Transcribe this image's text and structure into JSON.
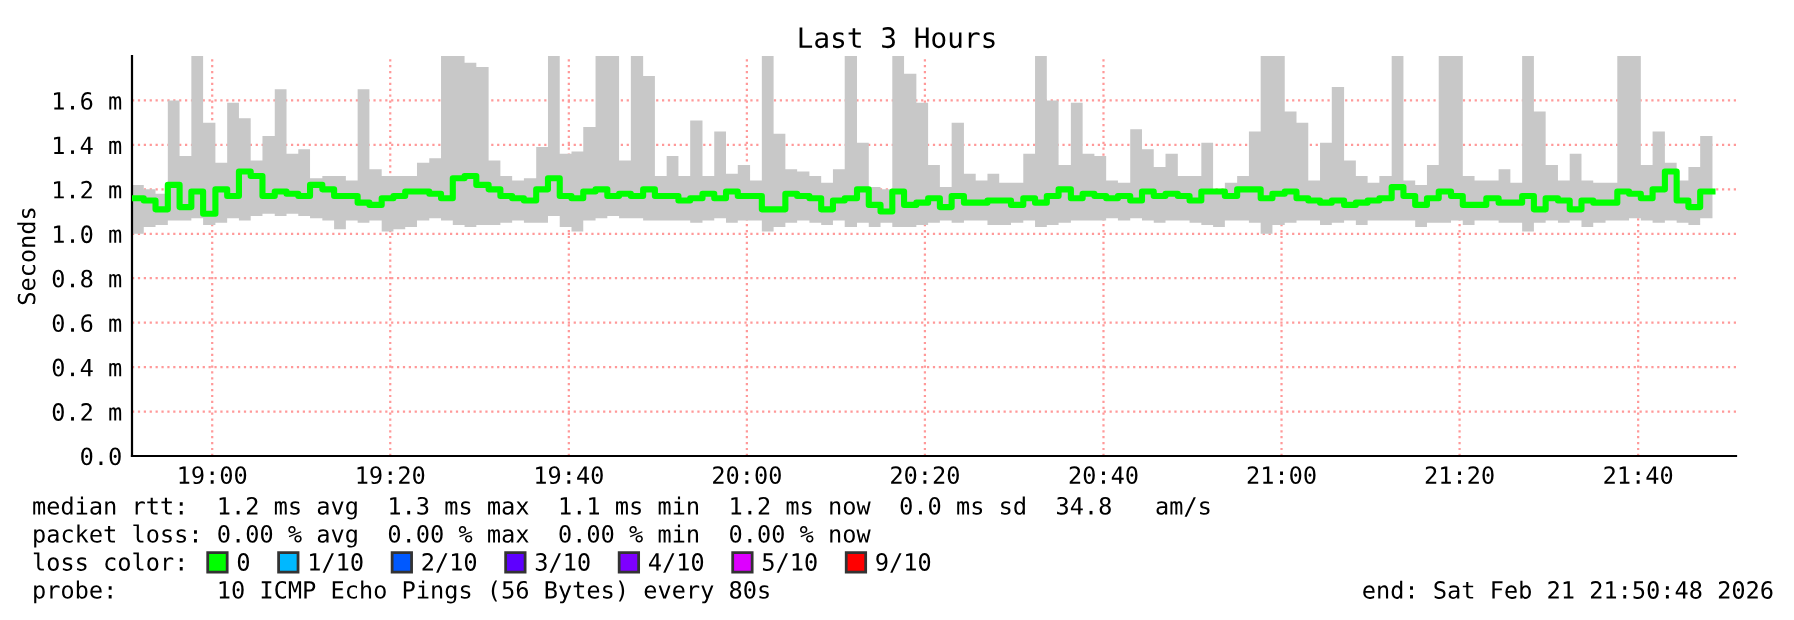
{
  "chart_data": {
    "type": "step",
    "title": "Last 3 Hours",
    "ylabel": "Seconds",
    "xlim": [
      18.85,
      21.85
    ],
    "ylim": [
      0,
      1.8
    ],
    "xticks": [
      {
        "value": 19,
        "label": "19:00"
      },
      {
        "value": 19.333,
        "label": "19:20"
      },
      {
        "value": 19.667,
        "label": "19:40"
      },
      {
        "value": 20,
        "label": "20:00"
      },
      {
        "value": 20.333,
        "label": "20:20"
      },
      {
        "value": 20.667,
        "label": "20:40"
      },
      {
        "value": 21,
        "label": "21:00"
      },
      {
        "value": 21.333,
        "label": "21:20"
      },
      {
        "value": 21.667,
        "label": "21:40"
      }
    ],
    "yticks": [
      {
        "value": 0,
        "label": "0.0"
      },
      {
        "value": 0.2,
        "label": "0.2 m"
      },
      {
        "value": 0.4,
        "label": "0.4 m"
      },
      {
        "value": 0.6,
        "label": "0.6 m"
      },
      {
        "value": 0.8,
        "label": "0.8 m"
      },
      {
        "value": 1.0,
        "label": "1.0 m"
      },
      {
        "value": 1.2,
        "label": "1.2 m"
      },
      {
        "value": 1.4,
        "label": "1.4 m"
      },
      {
        "value": 1.6,
        "label": "1.6 m"
      }
    ],
    "grid": true,
    "legend": "bottom",
    "legend_title": "loss color:",
    "x": [
      18.85,
      18.872,
      18.894,
      18.917,
      18.939,
      18.961,
      18.983,
      19.006,
      19.028,
      19.05,
      19.072,
      19.094,
      19.117,
      19.139,
      19.161,
      19.183,
      19.206,
      19.228,
      19.25,
      19.272,
      19.294,
      19.317,
      19.339,
      19.361,
      19.383,
      19.406,
      19.428,
      19.45,
      19.472,
      19.494,
      19.517,
      19.539,
      19.561,
      19.583,
      19.606,
      19.628,
      19.65,
      19.672,
      19.694,
      19.717,
      19.739,
      19.761,
      19.783,
      19.806,
      19.828,
      19.85,
      19.872,
      19.894,
      19.917,
      19.939,
      19.961,
      19.983,
      20.006,
      20.028,
      20.05,
      20.072,
      20.094,
      20.117,
      20.139,
      20.161,
      20.183,
      20.206,
      20.228,
      20.25,
      20.272,
      20.294,
      20.317,
      20.339,
      20.361,
      20.383,
      20.406,
      20.428,
      20.45,
      20.472,
      20.494,
      20.517,
      20.539,
      20.561,
      20.583,
      20.606,
      20.628,
      20.65,
      20.672,
      20.694,
      20.717,
      20.739,
      20.761,
      20.783,
      20.806,
      20.828,
      20.85,
      20.872,
      20.894,
      20.917,
      20.939,
      20.961,
      20.983,
      21.006,
      21.028,
      21.05,
      21.072,
      21.094,
      21.117,
      21.139,
      21.161,
      21.183,
      21.206,
      21.228,
      21.25,
      21.272,
      21.294,
      21.317,
      21.339,
      21.361,
      21.383,
      21.406,
      21.428,
      21.45,
      21.472,
      21.494,
      21.517,
      21.539,
      21.561,
      21.583,
      21.606,
      21.628,
      21.65,
      21.672,
      21.694,
      21.717,
      21.739,
      21.761,
      21.783,
      21.806
    ],
    "series": [
      {
        "name": "0",
        "color": "#00ff00",
        "values": [
          1.16,
          1.15,
          1.11,
          1.22,
          1.12,
          1.19,
          1.09,
          1.2,
          1.17,
          1.28,
          1.26,
          1.17,
          1.19,
          1.18,
          1.17,
          1.22,
          1.2,
          1.17,
          1.17,
          1.14,
          1.13,
          1.16,
          1.17,
          1.19,
          1.19,
          1.18,
          1.16,
          1.25,
          1.26,
          1.22,
          1.2,
          1.17,
          1.16,
          1.15,
          1.2,
          1.25,
          1.17,
          1.16,
          1.19,
          1.2,
          1.17,
          1.18,
          1.17,
          1.2,
          1.17,
          1.17,
          1.15,
          1.16,
          1.18,
          1.16,
          1.19,
          1.17,
          1.17,
          1.11,
          1.11,
          1.18,
          1.17,
          1.16,
          1.11,
          1.15,
          1.16,
          1.2,
          1.13,
          1.1,
          1.19,
          1.13,
          1.14,
          1.16,
          1.12,
          1.17,
          1.14,
          1.14,
          1.15,
          1.15,
          1.13,
          1.16,
          1.14,
          1.17,
          1.2,
          1.16,
          1.18,
          1.17,
          1.16,
          1.17,
          1.15,
          1.19,
          1.17,
          1.18,
          1.17,
          1.15,
          1.19,
          1.19,
          1.17,
          1.2,
          1.2,
          1.16,
          1.18,
          1.19,
          1.16,
          1.15,
          1.14,
          1.15,
          1.13,
          1.14,
          1.15,
          1.16,
          1.21,
          1.17,
          1.13,
          1.16,
          1.19,
          1.17,
          1.13,
          1.13,
          1.16,
          1.14,
          1.14,
          1.17,
          1.11,
          1.16,
          1.15,
          1.11,
          1.15,
          1.14,
          1.14,
          1.19,
          1.18,
          1.16,
          1.2,
          1.28,
          1.15,
          1.12,
          1.19,
          1.19
        ],
        "lower": [
          1.0,
          1.03,
          1.04,
          1.06,
          1.06,
          1.07,
          1.04,
          1.05,
          1.07,
          1.06,
          1.08,
          1.09,
          1.08,
          1.09,
          1.08,
          1.07,
          1.06,
          1.02,
          1.06,
          1.05,
          1.06,
          1.01,
          1.02,
          1.03,
          1.06,
          1.07,
          1.06,
          1.04,
          1.03,
          1.04,
          1.04,
          1.05,
          1.06,
          1.05,
          1.05,
          1.08,
          1.03,
          1.01,
          1.06,
          1.07,
          1.08,
          1.07,
          1.07,
          1.06,
          1.06,
          1.06,
          1.06,
          1.05,
          1.06,
          1.07,
          1.05,
          1.06,
          1.06,
          1.01,
          1.03,
          1.05,
          1.06,
          1.05,
          1.04,
          1.06,
          1.03,
          1.05,
          1.03,
          1.05,
          1.03,
          1.03,
          1.04,
          1.05,
          1.06,
          1.05,
          1.06,
          1.06,
          1.04,
          1.04,
          1.05,
          1.06,
          1.03,
          1.04,
          1.05,
          1.06,
          1.06,
          1.06,
          1.07,
          1.06,
          1.07,
          1.06,
          1.05,
          1.06,
          1.06,
          1.05,
          1.04,
          1.03,
          1.06,
          1.06,
          1.05,
          1.0,
          1.04,
          1.05,
          1.06,
          1.06,
          1.04,
          1.05,
          1.06,
          1.04,
          1.06,
          1.06,
          1.06,
          1.06,
          1.03,
          1.05,
          1.05,
          1.06,
          1.04,
          1.06,
          1.06,
          1.05,
          1.05,
          1.01,
          1.05,
          1.06,
          1.05,
          1.06,
          1.03,
          1.05,
          1.06,
          1.06,
          1.07,
          1.06,
          1.05,
          1.06,
          1.05,
          1.04,
          1.07,
          1.07
        ],
        "upper": [
          1.22,
          1.2,
          1.18,
          1.6,
          1.35,
          1.8,
          1.5,
          1.32,
          1.59,
          1.52,
          1.33,
          1.44,
          1.65,
          1.36,
          1.38,
          1.25,
          1.26,
          1.26,
          1.24,
          1.65,
          1.29,
          1.26,
          1.26,
          1.26,
          1.32,
          1.34,
          1.8,
          1.8,
          1.77,
          1.75,
          1.33,
          1.26,
          1.24,
          1.25,
          1.39,
          1.8,
          1.36,
          1.37,
          1.48,
          1.8,
          1.8,
          1.33,
          1.8,
          1.71,
          1.26,
          1.35,
          1.26,
          1.51,
          1.26,
          1.46,
          1.27,
          1.31,
          1.24,
          1.8,
          1.45,
          1.29,
          1.28,
          1.26,
          1.23,
          1.29,
          1.8,
          1.41,
          1.21,
          1.2,
          1.8,
          1.72,
          1.59,
          1.31,
          1.21,
          1.5,
          1.27,
          1.24,
          1.27,
          1.23,
          1.23,
          1.36,
          1.8,
          1.6,
          1.31,
          1.59,
          1.36,
          1.35,
          1.24,
          1.23,
          1.47,
          1.38,
          1.3,
          1.36,
          1.26,
          1.26,
          1.41,
          1.2,
          1.23,
          1.26,
          1.46,
          1.8,
          1.8,
          1.55,
          1.5,
          1.24,
          1.41,
          1.66,
          1.33,
          1.26,
          1.23,
          1.26,
          1.8,
          1.24,
          1.22,
          1.31,
          1.8,
          1.8,
          1.26,
          1.24,
          1.24,
          1.29,
          1.23,
          1.8,
          1.55,
          1.31,
          1.24,
          1.36,
          1.24,
          1.23,
          1.23,
          1.8,
          1.8,
          1.31,
          1.46,
          1.32,
          1.24,
          1.3,
          1.44,
          1.44
        ]
      },
      {
        "name": "1/10",
        "color": "#00b8ff",
        "values": [
          null,
          null,
          null,
          null,
          null,
          null,
          null,
          null,
          null,
          null,
          null,
          null,
          null,
          null,
          null,
          null,
          null,
          null,
          null,
          null,
          null,
          null,
          null,
          null,
          null,
          null,
          null,
          null,
          null,
          null,
          null,
          null,
          null,
          null,
          null,
          null,
          null,
          null,
          null,
          null,
          null,
          null,
          null,
          null,
          null,
          null,
          null,
          null,
          null,
          null,
          null,
          null,
          null,
          null,
          null,
          null,
          null,
          null,
          null,
          null,
          null,
          null,
          null,
          null,
          null,
          null,
          null,
          null,
          null,
          null,
          null,
          null,
          null,
          null,
          null,
          null,
          null,
          null,
          null,
          null,
          null,
          null,
          null,
          null,
          null,
          null,
          null,
          null,
          null,
          null,
          null,
          null,
          null,
          null,
          null,
          null,
          null,
          null,
          null,
          null,
          null,
          null,
          null,
          null,
          null,
          null,
          null,
          null,
          null,
          null,
          null,
          null,
          null,
          null,
          null,
          null,
          null,
          null,
          null,
          null,
          null,
          null,
          null,
          null,
          null,
          null,
          null,
          null,
          null,
          null,
          null,
          null,
          null,
          null
        ]
      },
      {
        "name": "2/10",
        "color": "#0059ff",
        "values": [
          null,
          null,
          null,
          null,
          null,
          null,
          null,
          null,
          null,
          null,
          null,
          null,
          null,
          null,
          null,
          null,
          null,
          null,
          null,
          null,
          null,
          null,
          null,
          null,
          null,
          null,
          null,
          null,
          null,
          null,
          null,
          null,
          null,
          null,
          null,
          null,
          null,
          null,
          null,
          null,
          null,
          null,
          null,
          null,
          null,
          null,
          null,
          null,
          null,
          null,
          null,
          null,
          null,
          null,
          null,
          null,
          null,
          null,
          null,
          null,
          null,
          null,
          null,
          null,
          null,
          null,
          null,
          null,
          null,
          null,
          null,
          null,
          null,
          null,
          null,
          null,
          null,
          null,
          null,
          null,
          null,
          null,
          null,
          null,
          null,
          null,
          null,
          null,
          null,
          null,
          null,
          null,
          null,
          null,
          null,
          null,
          null,
          null,
          null,
          null,
          null,
          null,
          null,
          null,
          null,
          null,
          null,
          null,
          null,
          null,
          null,
          null,
          null,
          null,
          null,
          null,
          null,
          null,
          null,
          null,
          null,
          null,
          null,
          null,
          null,
          null,
          null,
          null,
          null,
          null,
          null,
          null,
          null,
          null
        ]
      },
      {
        "name": "3/10",
        "color": "#5e00ff",
        "values": [
          null,
          null,
          null,
          null,
          null,
          null,
          null,
          null,
          null,
          null,
          null,
          null,
          null,
          null,
          null,
          null,
          null,
          null,
          null,
          null,
          null,
          null,
          null,
          null,
          null,
          null,
          null,
          null,
          null,
          null,
          null,
          null,
          null,
          null,
          null,
          null,
          null,
          null,
          null,
          null,
          null,
          null,
          null,
          null,
          null,
          null,
          null,
          null,
          null,
          null,
          null,
          null,
          null,
          null,
          null,
          null,
          null,
          null,
          null,
          null,
          null,
          null,
          null,
          null,
          null,
          null,
          null,
          null,
          null,
          null,
          null,
          null,
          null,
          null,
          null,
          null,
          null,
          null,
          null,
          null,
          null,
          null,
          null,
          null,
          null,
          null,
          null,
          null,
          null,
          null,
          null,
          null,
          null,
          null,
          null,
          null,
          null,
          null,
          null,
          null,
          null,
          null,
          null,
          null,
          null,
          null,
          null,
          null,
          null,
          null,
          null,
          null,
          null,
          null,
          null,
          null,
          null,
          null,
          null,
          null,
          null,
          null,
          null,
          null,
          null,
          null,
          null,
          null,
          null,
          null,
          null,
          null,
          null,
          null
        ]
      },
      {
        "name": "4/10",
        "color": "#7e00ff",
        "values": [
          null,
          null,
          null,
          null,
          null,
          null,
          null,
          null,
          null,
          null,
          null,
          null,
          null,
          null,
          null,
          null,
          null,
          null,
          null,
          null,
          null,
          null,
          null,
          null,
          null,
          null,
          null,
          null,
          null,
          null,
          null,
          null,
          null,
          null,
          null,
          null,
          null,
          null,
          null,
          null,
          null,
          null,
          null,
          null,
          null,
          null,
          null,
          null,
          null,
          null,
          null,
          null,
          null,
          null,
          null,
          null,
          null,
          null,
          null,
          null,
          null,
          null,
          null,
          null,
          null,
          null,
          null,
          null,
          null,
          null,
          null,
          null,
          null,
          null,
          null,
          null,
          null,
          null,
          null,
          null,
          null,
          null,
          null,
          null,
          null,
          null,
          null,
          null,
          null,
          null,
          null,
          null,
          null,
          null,
          null,
          null,
          null,
          null,
          null,
          null,
          null,
          null,
          null,
          null,
          null,
          null,
          null,
          null,
          null,
          null,
          null,
          null,
          null,
          null,
          null,
          null,
          null,
          null,
          null,
          null,
          null,
          null,
          null,
          null,
          null,
          null,
          null,
          null,
          null,
          null,
          null,
          null,
          null,
          null
        ]
      },
      {
        "name": "5/10",
        "color": "#dd00ff",
        "values": [
          null,
          null,
          null,
          null,
          null,
          null,
          null,
          null,
          null,
          null,
          null,
          null,
          null,
          null,
          null,
          null,
          null,
          null,
          null,
          null,
          null,
          null,
          null,
          null,
          null,
          null,
          null,
          null,
          null,
          null,
          null,
          null,
          null,
          null,
          null,
          null,
          null,
          null,
          null,
          null,
          null,
          null,
          null,
          null,
          null,
          null,
          null,
          null,
          null,
          null,
          null,
          null,
          null,
          null,
          null,
          null,
          null,
          null,
          null,
          null,
          null,
          null,
          null,
          null,
          null,
          null,
          null,
          null,
          null,
          null,
          null,
          null,
          null,
          null,
          null,
          null,
          null,
          null,
          null,
          null,
          null,
          null,
          null,
          null,
          null,
          null,
          null,
          null,
          null,
          null,
          null,
          null,
          null,
          null,
          null,
          null,
          null,
          null,
          null,
          null,
          null,
          null,
          null,
          null,
          null,
          null,
          null,
          null,
          null,
          null,
          null,
          null,
          null,
          null,
          null,
          null,
          null,
          null,
          null,
          null,
          null,
          null,
          null,
          null,
          null,
          null,
          null,
          null,
          null,
          null,
          null,
          null,
          null,
          null
        ]
      },
      {
        "name": "9/10",
        "color": "#ff0000",
        "values": [
          null,
          null,
          null,
          null,
          null,
          null,
          null,
          null,
          null,
          null,
          null,
          null,
          null,
          null,
          null,
          null,
          null,
          null,
          null,
          null,
          null,
          null,
          null,
          null,
          null,
          null,
          null,
          null,
          null,
          null,
          null,
          null,
          null,
          null,
          null,
          null,
          null,
          null,
          null,
          null,
          null,
          null,
          null,
          null,
          null,
          null,
          null,
          null,
          null,
          null,
          null,
          null,
          null,
          null,
          null,
          null,
          null,
          null,
          null,
          null,
          null,
          null,
          null,
          null,
          null,
          null,
          null,
          null,
          null,
          null,
          null,
          null,
          null,
          null,
          null,
          null,
          null,
          null,
          null,
          null,
          null,
          null,
          null,
          null,
          null,
          null,
          null,
          null,
          null,
          null,
          null,
          null,
          null,
          null,
          null,
          null,
          null,
          null,
          null,
          null,
          null,
          null,
          null,
          null,
          null,
          null,
          null,
          null,
          null,
          null,
          null,
          null,
          null,
          null,
          null,
          null,
          null,
          null,
          null,
          null,
          null,
          null,
          null,
          null,
          null,
          null,
          null,
          null,
          null,
          null,
          null,
          null,
          null,
          null
        ]
      }
    ],
    "annotations": [
      "median rtt:  1.2 ms avg  1.3 ms max  1.1 ms min  1.2 ms now  0.0 ms sd  34.8   am/s",
      "packet loss: 0.00 % avg  0.00 % max  0.00 % min  0.00 % now",
      "probe:       10 ICMP Echo Pings (56 Bytes) every 80s",
      "end: Sat Feb 21 21:50:48 2026"
    ]
  }
}
